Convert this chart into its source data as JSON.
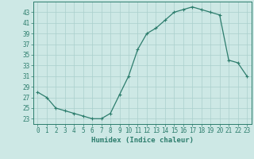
{
  "x": [
    0,
    1,
    2,
    3,
    4,
    5,
    6,
    7,
    8,
    9,
    10,
    11,
    12,
    13,
    14,
    15,
    16,
    17,
    18,
    19,
    20,
    21,
    22,
    23
  ],
  "y": [
    28,
    27,
    25,
    24.5,
    24,
    23.5,
    23,
    23,
    24,
    27.5,
    31,
    36,
    39,
    40,
    41.5,
    43,
    43.5,
    44,
    43.5,
    43,
    42.5,
    34,
    33.5,
    31
  ],
  "line_color": "#2d7d6d",
  "marker_color": "#2d7d6d",
  "bg_color": "#cde8e5",
  "grid_color": "#aacfcc",
  "xlabel": "Humidex (Indice chaleur)",
  "ylim": [
    22,
    45
  ],
  "xlim": [
    -0.5,
    23.5
  ],
  "yticks": [
    23,
    25,
    27,
    29,
    31,
    33,
    35,
    37,
    39,
    41,
    43
  ],
  "xticks": [
    0,
    1,
    2,
    3,
    4,
    5,
    6,
    7,
    8,
    9,
    10,
    11,
    12,
    13,
    14,
    15,
    16,
    17,
    18,
    19,
    20,
    21,
    22,
    23
  ],
  "tick_fontsize": 5.5,
  "label_fontsize": 6.5
}
